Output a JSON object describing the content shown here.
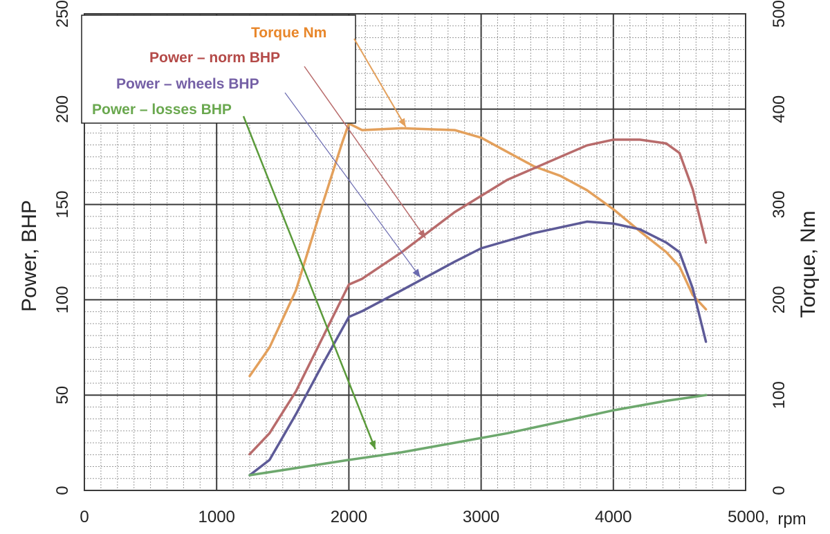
{
  "chart_data": {
    "type": "line",
    "title": "",
    "xlabel": "rpm",
    "ylabel": "Power,  BHP",
    "y2label": "Torque,  Nm",
    "xlim": [
      0,
      5000
    ],
    "ylim": [
      0,
      250
    ],
    "y2lim": [
      0,
      500
    ],
    "x_ticks": [
      0,
      1000,
      2000,
      3000,
      4000,
      5000
    ],
    "x_tick_labels": [
      "0",
      "1000",
      "2000",
      "3000",
      "4000",
      "5000,"
    ],
    "y_ticks": [
      0,
      50,
      100,
      150,
      200,
      250
    ],
    "y_tick_labels": [
      "0",
      "50",
      "100",
      "150",
      "200",
      "250"
    ],
    "y2_ticks": [
      0,
      100,
      200,
      300,
      400,
      500
    ],
    "y2_tick_labels": [
      "0",
      "100",
      "200",
      "300",
      "400",
      "500"
    ],
    "grid": true,
    "legend_position": "top-left",
    "series": [
      {
        "name": "Torque Nm",
        "axis": "right",
        "color": "#e3a05c",
        "label_color": "#e8862a",
        "x": [
          1250,
          1400,
          1600,
          1800,
          1950,
          2000,
          2100,
          2400,
          2800,
          3000,
          3200,
          3400,
          3600,
          3800,
          4000,
          4200,
          4400,
          4500,
          4600,
          4700
        ],
        "values": [
          120,
          150,
          210,
          300,
          365,
          385,
          378,
          380,
          378,
          370,
          355,
          340,
          330,
          315,
          295,
          272,
          250,
          235,
          205,
          190
        ]
      },
      {
        "name": "Power – norm BHP",
        "axis": "left",
        "color": "#b86b6b",
        "label_color": "#b44a48",
        "x": [
          1250,
          1400,
          1600,
          1800,
          2000,
          2100,
          2400,
          2800,
          3200,
          3600,
          3800,
          4000,
          4200,
          4400,
          4500,
          4600,
          4700
        ],
        "values": [
          19,
          30,
          52,
          80,
          108,
          111,
          125,
          146,
          163,
          175,
          181,
          184,
          184,
          182,
          177,
          158,
          130
        ]
      },
      {
        "name": "Power – wheels BHP",
        "axis": "left",
        "color": "#5d5a97",
        "label_color": "#7560a6",
        "x": [
          1250,
          1400,
          1600,
          1800,
          2000,
          2100,
          2400,
          2800,
          3000,
          3400,
          3800,
          4000,
          4200,
          4400,
          4500,
          4600,
          4700
        ],
        "values": [
          8,
          16,
          40,
          66,
          91,
          94,
          105,
          120,
          127,
          135,
          141,
          140,
          137,
          130,
          125,
          106,
          78
        ]
      },
      {
        "name": "Power – losses BHP",
        "axis": "left",
        "color": "#6da86d",
        "label_color": "#6aa84f",
        "x": [
          1250,
          2000,
          2400,
          2800,
          3200,
          3600,
          4000,
          4400,
          4700
        ],
        "values": [
          8,
          16,
          20,
          25,
          30,
          36,
          42,
          47,
          50
        ]
      }
    ]
  }
}
